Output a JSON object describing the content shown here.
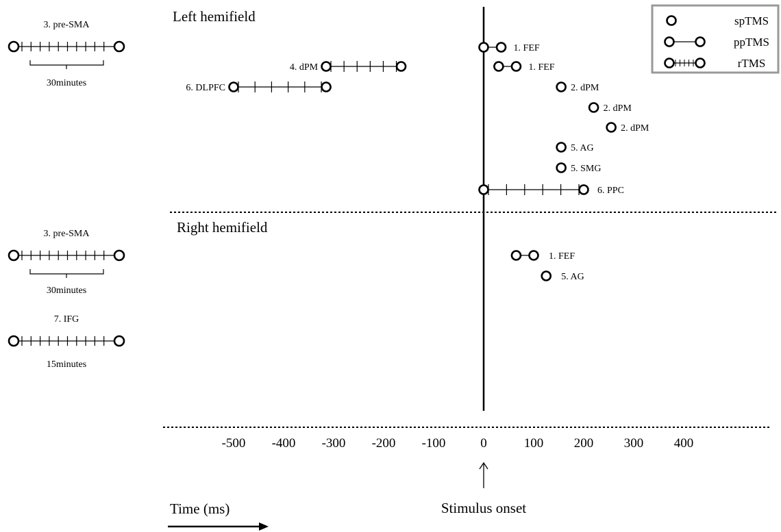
{
  "hemifields": {
    "left": "Left hemifield",
    "right": "Right hemifield"
  },
  "legend": [
    {
      "type": "sp",
      "label": "spTMS"
    },
    {
      "type": "pp",
      "label": "ppTMS"
    },
    {
      "type": "r",
      "label": "rTMS"
    }
  ],
  "axis": {
    "ticks": [
      -500,
      -400,
      -300,
      -200,
      -100,
      0,
      100,
      200,
      300,
      400
    ],
    "xlabel": "Time (ms)",
    "onset_label": "Stimulus onset"
  },
  "left_events": [
    {
      "label": "1. FEF",
      "type": "pp",
      "start": 0,
      "end": 35
    },
    {
      "label": "1. FEF",
      "type": "pp",
      "start": 30,
      "end": 65
    },
    {
      "label": "2. dPM",
      "type": "sp",
      "time": 155
    },
    {
      "label": "2. dPM",
      "type": "sp",
      "time": 220
    },
    {
      "label": "2. dPM",
      "type": "sp",
      "time": 255
    },
    {
      "label": "5. AG",
      "type": "sp",
      "time": 155
    },
    {
      "label": "5. SMG",
      "type": "sp",
      "time": 155
    },
    {
      "label": "6. PPC",
      "type": "r",
      "start": 0,
      "end": 200,
      "pulses": 4
    },
    {
      "label": "4. dPM",
      "type": "r",
      "start": -315,
      "end": -165,
      "pulses": 4
    },
    {
      "label": "6. DLPFC",
      "type": "r",
      "start": -500,
      "end": -315,
      "pulses": 4
    }
  ],
  "right_events": [
    {
      "label": "1. FEF",
      "type": "pp",
      "start": 65,
      "end": 100
    },
    {
      "label": "5. AG",
      "type": "sp",
      "time": 125
    }
  ],
  "offline": [
    {
      "name": "3. pre-SMA",
      "duration": "30minutes",
      "hemifield": "left"
    },
    {
      "name": "3. pre-SMA",
      "duration": "30minutes",
      "hemifield": "right"
    },
    {
      "name": "7. IFG",
      "duration": "15minutes",
      "hemifield": "right"
    }
  ]
}
